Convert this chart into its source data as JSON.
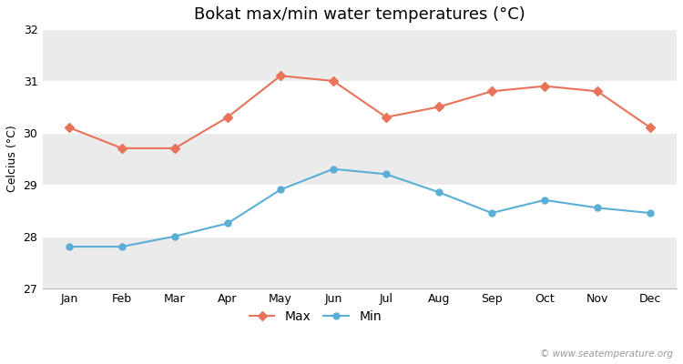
{
  "title": "Bokat max/min water temperatures (°C)",
  "ylabel": "Celcius (°C)",
  "months": [
    "Jan",
    "Feb",
    "Mar",
    "Apr",
    "May",
    "Jun",
    "Jul",
    "Aug",
    "Sep",
    "Oct",
    "Nov",
    "Dec"
  ],
  "max_temps": [
    30.1,
    29.7,
    29.7,
    30.3,
    31.1,
    31.0,
    30.3,
    30.5,
    30.8,
    30.9,
    30.8,
    30.1
  ],
  "min_temps": [
    27.8,
    27.8,
    28.0,
    28.25,
    28.9,
    29.3,
    29.2,
    28.85,
    28.45,
    28.7,
    28.55,
    28.45
  ],
  "max_color": "#e8735a",
  "min_color": "#5bafd6",
  "figure_bg": "#ffffff",
  "band_light": "#ffffff",
  "band_dark": "#ebebeb",
  "ylim": [
    27.0,
    32.0
  ],
  "yticks": [
    27,
    28,
    29,
    30,
    31,
    32
  ],
  "watermark": "© www.seatemperature.org",
  "legend_labels": [
    "Max",
    "Min"
  ],
  "title_fontsize": 13,
  "label_fontsize": 9,
  "tick_fontsize": 9,
  "watermark_fontsize": 7.5
}
